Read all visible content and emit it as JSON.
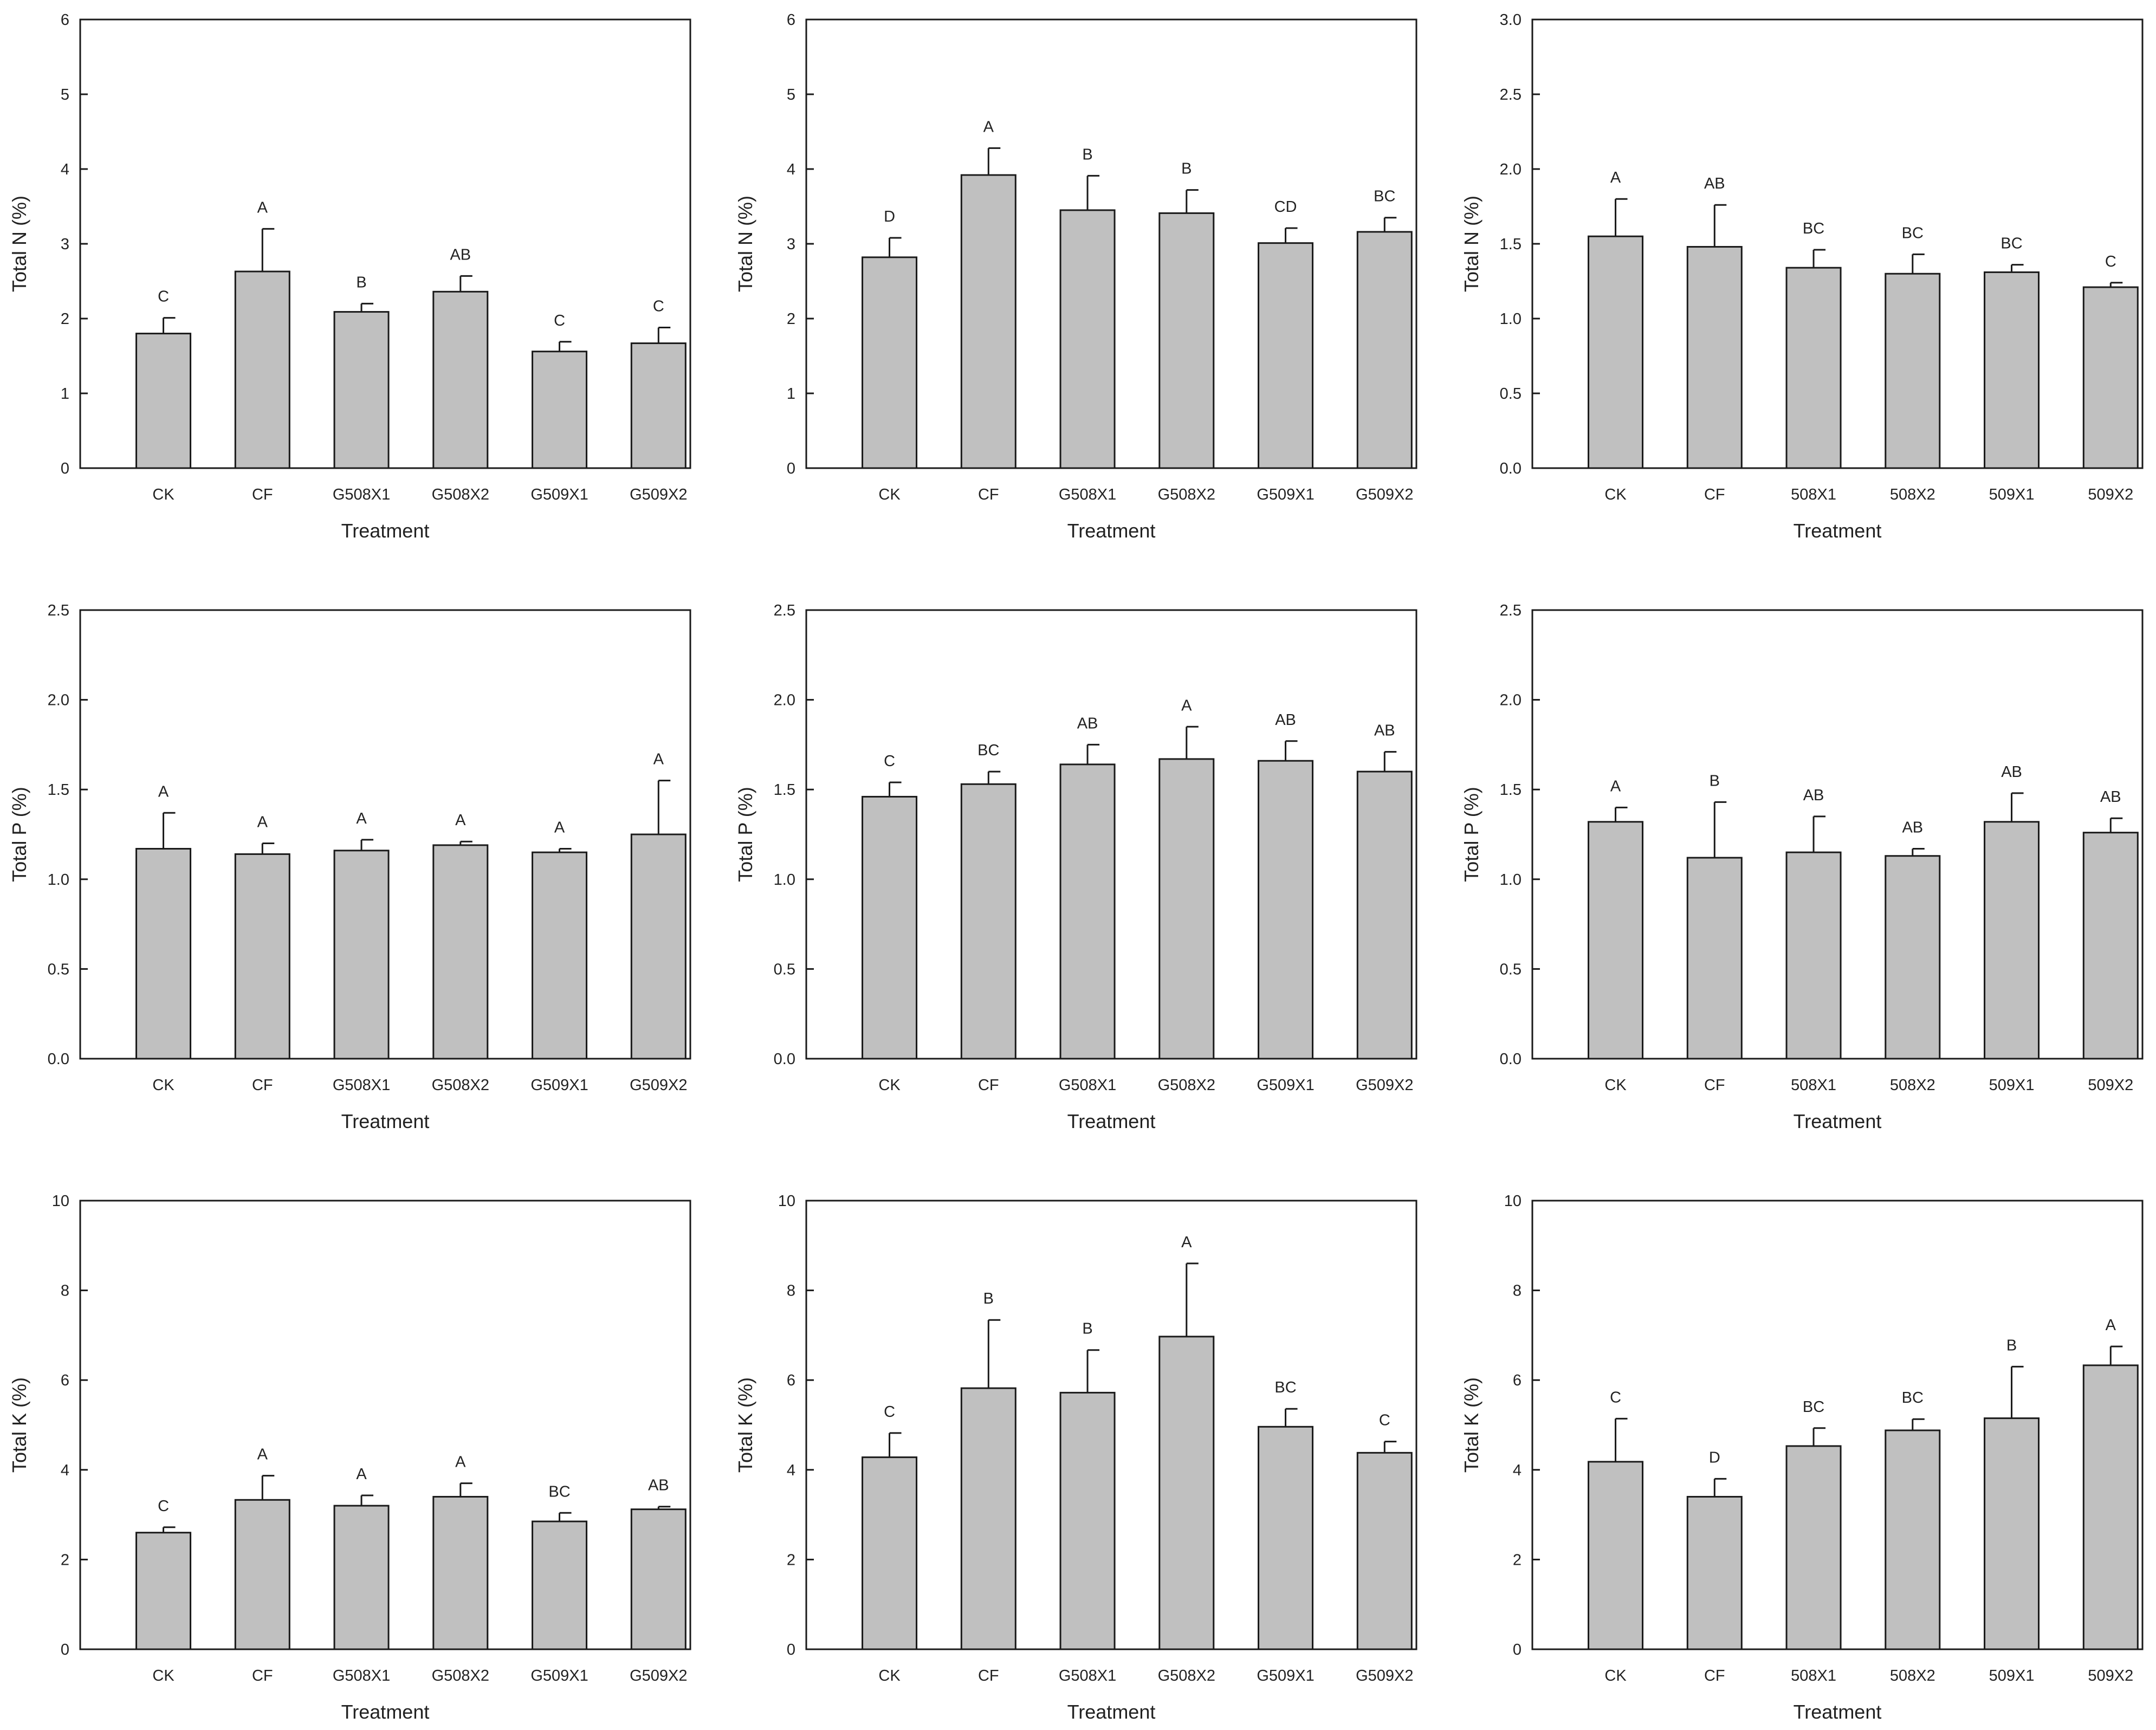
{
  "chart_data": [
    {
      "type": "bar",
      "panel": "row1-col1",
      "categories": [
        "CK",
        "CF",
        "G508X1",
        "G508X2",
        "G509X1",
        "G509X2"
      ],
      "values": [
        1.8,
        2.63,
        2.09,
        2.36,
        1.56,
        1.67
      ],
      "errors": [
        0.21,
        0.57,
        0.11,
        0.21,
        0.13,
        0.21
      ],
      "labels": [
        "C",
        "A",
        "B",
        "AB",
        "C",
        "C"
      ],
      "xlabel": "Treatment",
      "ylabel": "Total N (%)",
      "ylim": [
        0,
        6
      ],
      "yticks": [
        "0",
        "1",
        "2",
        "3",
        "4",
        "5",
        "6"
      ]
    },
    {
      "type": "bar",
      "panel": "row1-col2",
      "categories": [
        "CK",
        "CF",
        "G508X1",
        "G508X2",
        "G509X1",
        "G509X2"
      ],
      "values": [
        2.82,
        3.92,
        3.45,
        3.41,
        3.01,
        3.16
      ],
      "errors": [
        0.26,
        0.36,
        0.46,
        0.31,
        0.2,
        0.19
      ],
      "labels": [
        "D",
        "A",
        "B",
        "B",
        "CD",
        "BC"
      ],
      "xlabel": "Treatment",
      "ylabel": "Total N (%)",
      "ylim": [
        0,
        6
      ],
      "yticks": [
        "0",
        "1",
        "2",
        "3",
        "4",
        "5",
        "6"
      ]
    },
    {
      "type": "bar",
      "panel": "row1-col3",
      "categories": [
        "CK",
        "CF",
        "508X1",
        "508X2",
        "509X1",
        "509X2"
      ],
      "values": [
        1.55,
        1.48,
        1.34,
        1.3,
        1.31,
        1.21
      ],
      "errors": [
        0.25,
        0.28,
        0.12,
        0.13,
        0.05,
        0.03
      ],
      "labels": [
        "A",
        "AB",
        "BC",
        "BC",
        "BC",
        "C"
      ],
      "xlabel": "Treatment",
      "ylabel": "Total N (%)",
      "ylim": [
        0,
        3
      ],
      "yticks": [
        "0.0",
        "0.5",
        "1.0",
        "1.5",
        "2.0",
        "2.5",
        "3.0"
      ]
    },
    {
      "type": "bar",
      "panel": "row2-col1",
      "categories": [
        "CK",
        "CF",
        "G508X1",
        "G508X2",
        "G509X1",
        "G509X2"
      ],
      "values": [
        1.17,
        1.14,
        1.16,
        1.19,
        1.15,
        1.25
      ],
      "errors": [
        0.2,
        0.06,
        0.06,
        0.02,
        0.02,
        0.3
      ],
      "labels": [
        "A",
        "A",
        "A",
        "A",
        "A",
        "A"
      ],
      "xlabel": "Treatment",
      "ylabel": "Total P (%)",
      "ylim": [
        0,
        2.5
      ],
      "yticks": [
        "0.0",
        "0.5",
        "1.0",
        "1.5",
        "2.0",
        "2.5"
      ]
    },
    {
      "type": "bar",
      "panel": "row2-col2",
      "categories": [
        "CK",
        "CF",
        "G508X1",
        "G508X2",
        "G509X1",
        "G509X2"
      ],
      "values": [
        1.46,
        1.53,
        1.64,
        1.67,
        1.66,
        1.6
      ],
      "errors": [
        0.08,
        0.07,
        0.11,
        0.18,
        0.11,
        0.11
      ],
      "labels": [
        "C",
        "BC",
        "AB",
        "A",
        "AB",
        "AB"
      ],
      "xlabel": "Treatment",
      "ylabel": "Total P (%)",
      "ylim": [
        0,
        2.5
      ],
      "yticks": [
        "0.0",
        "0.5",
        "1.0",
        "1.5",
        "2.0",
        "2.5"
      ]
    },
    {
      "type": "bar",
      "panel": "row2-col3",
      "categories": [
        "CK",
        "CF",
        "508X1",
        "508X2",
        "509X1",
        "509X2"
      ],
      "values": [
        1.32,
        1.12,
        1.15,
        1.13,
        1.32,
        1.26
      ],
      "errors": [
        0.08,
        0.31,
        0.2,
        0.04,
        0.16,
        0.08
      ],
      "labels": [
        "A",
        "B",
        "AB",
        "AB",
        "AB",
        "AB"
      ],
      "xlabel": "Treatment",
      "ylabel": "Total P (%)",
      "ylim": [
        0,
        2.5
      ],
      "yticks": [
        "0.0",
        "0.5",
        "1.0",
        "1.5",
        "2.0",
        "2.5"
      ]
    },
    {
      "type": "bar",
      "panel": "row3-col1",
      "categories": [
        "CK",
        "CF",
        "G508X1",
        "G508X2",
        "G509X1",
        "G509X2"
      ],
      "values": [
        2.6,
        3.33,
        3.2,
        3.4,
        2.85,
        3.12
      ],
      "errors": [
        0.12,
        0.54,
        0.23,
        0.3,
        0.19,
        0.06
      ],
      "labels": [
        "C",
        "A",
        "A",
        "A",
        "BC",
        "AB"
      ],
      "xlabel": "Treatment",
      "ylabel": "Total K (%)",
      "ylim": [
        0,
        10
      ],
      "yticks": [
        "0",
        "2",
        "4",
        "6",
        "8",
        "10"
      ]
    },
    {
      "type": "bar",
      "panel": "row3-col2",
      "categories": [
        "CK",
        "CF",
        "G508X1",
        "G508X2",
        "G509X1",
        "G509X2"
      ],
      "values": [
        4.28,
        5.82,
        5.72,
        6.97,
        4.96,
        4.38
      ],
      "errors": [
        0.54,
        1.52,
        0.95,
        1.63,
        0.4,
        0.25
      ],
      "labels": [
        "C",
        "B",
        "B",
        "A",
        "BC",
        "C"
      ],
      "xlabel": "Treatment",
      "ylabel": "Total K (%)",
      "ylim": [
        0,
        10
      ],
      "yticks": [
        "0",
        "2",
        "4",
        "6",
        "8",
        "10"
      ]
    },
    {
      "type": "bar",
      "panel": "row3-col3",
      "categories": [
        "CK",
        "CF",
        "508X1",
        "508X2",
        "509X1",
        "509X2"
      ],
      "values": [
        4.18,
        3.4,
        4.53,
        4.88,
        5.15,
        6.33
      ],
      "errors": [
        0.96,
        0.4,
        0.4,
        0.25,
        1.15,
        0.42
      ],
      "labels": [
        "C",
        "D",
        "BC",
        "BC",
        "B",
        "A"
      ],
      "xlabel": "Treatment",
      "ylabel": "Total K (%)",
      "ylim": [
        0,
        10
      ],
      "yticks": [
        "0",
        "2",
        "4",
        "6",
        "8",
        "10"
      ]
    }
  ]
}
